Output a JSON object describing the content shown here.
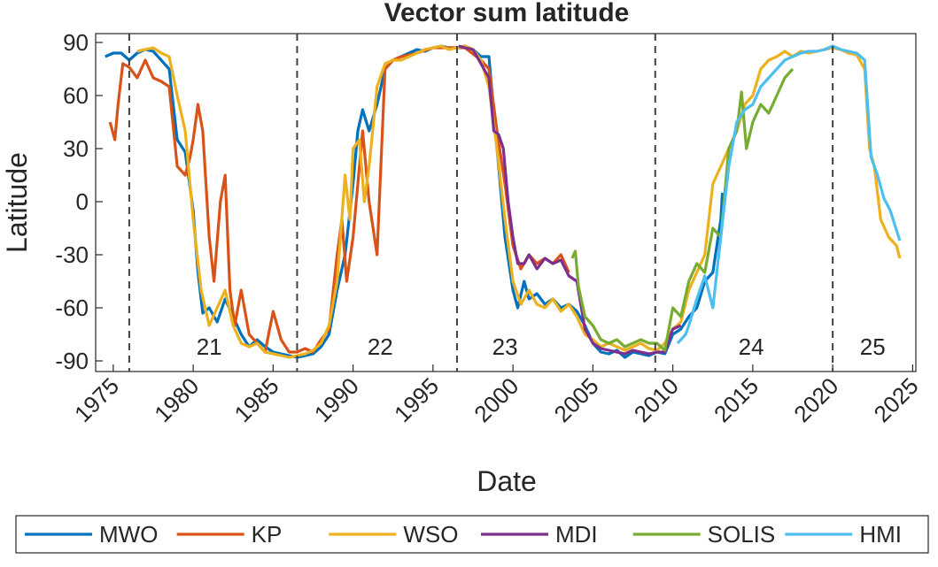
{
  "chart_data": {
    "type": "line",
    "title": "Vector sum latitude",
    "xlabel": "Date",
    "ylabel": "Latitude",
    "xlim": [
      1973.9,
      2025.2
    ],
    "ylim": [
      -96,
      95
    ],
    "xticks": [
      1975,
      1980,
      1985,
      1990,
      1995,
      2000,
      2005,
      2010,
      2015,
      2020,
      2025
    ],
    "yticks": [
      -90,
      -60,
      -30,
      0,
      30,
      60,
      90
    ],
    "legend": "bottom",
    "cycle_minima": [
      1976.0,
      1986.5,
      1996.5,
      2008.9,
      2020.0
    ],
    "cycle_labels": [
      {
        "text": "21",
        "x": 1981.0,
        "y": -82
      },
      {
        "text": "22",
        "x": 1991.7,
        "y": -82
      },
      {
        "text": "23",
        "x": 1999.5,
        "y": -82
      },
      {
        "text": "24",
        "x": 2014.9,
        "y": -82
      },
      {
        "text": "25",
        "x": 2022.5,
        "y": -82
      }
    ],
    "series": [
      {
        "name": "MWO",
        "color": "#0072BD",
        "x": [
          1974.5,
          1975,
          1975.5,
          1976,
          1976.5,
          1977,
          1977.5,
          1978,
          1978.5,
          1979,
          1979.5,
          1980,
          1980.3,
          1980.6,
          1981,
          1981.5,
          1982,
          1982.5,
          1983,
          1983.5,
          1984,
          1984.5,
          1985,
          1985.5,
          1986,
          1986.5,
          1987,
          1987.5,
          1988,
          1988.5,
          1989,
          1989.5,
          1990,
          1990.3,
          1990.6,
          1991,
          1991.5,
          1992,
          1992.5,
          1993,
          1993.5,
          1994,
          1994.5,
          1995,
          1995.5,
          1996,
          1996.5,
          1997,
          1997.5,
          1998,
          1998.5,
          1999,
          1999.5,
          2000,
          2000.3,
          2000.7,
          2001,
          2001.5,
          2002,
          2002.5,
          2003,
          2003.5,
          2004,
          2004.5,
          2005,
          2005.5,
          2006,
          2006.5,
          2007,
          2007.5,
          2008,
          2008.5,
          2009,
          2009.5,
          2010,
          2010.5,
          2011,
          2011.5,
          2012,
          2012.5,
          2013,
          2013.1
        ],
        "values": [
          82,
          84,
          84,
          80,
          84,
          86,
          85,
          80,
          75,
          35,
          28,
          -5,
          -40,
          -63,
          -60,
          -68,
          -55,
          -65,
          -75,
          -82,
          -78,
          -82,
          -85,
          -86,
          -87,
          -88,
          -87,
          -86,
          -82,
          -75,
          -50,
          -30,
          10,
          40,
          52,
          40,
          55,
          75,
          80,
          82,
          84,
          86,
          85,
          87,
          88,
          87,
          87,
          88,
          86,
          82,
          82,
          30,
          -20,
          -50,
          -60,
          -45,
          -55,
          -52,
          -58,
          -55,
          -60,
          -58,
          -62,
          -70,
          -80,
          -85,
          -86,
          -84,
          -88,
          -85,
          -86,
          -87,
          -85,
          -86,
          -75,
          -72,
          -65,
          -60,
          -45,
          -40,
          -10,
          5
        ]
      },
      {
        "name": "KP",
        "color": "#D95319",
        "x": [
          1974.8,
          1975.1,
          1975.3,
          1975.6,
          1976,
          1976.5,
          1977,
          1977.5,
          1978,
          1978.5,
          1979,
          1979.5,
          1979.8,
          1980,
          1980.3,
          1980.6,
          1981,
          1981.3,
          1981.7,
          1982,
          1982.3,
          1982.6,
          1983,
          1983.5,
          1984,
          1984.5,
          1985,
          1985.5,
          1986,
          1986.5,
          1987,
          1987.5,
          1988,
          1988.5,
          1989,
          1989.3,
          1989.6,
          1990,
          1990.3,
          1990.6,
          1991,
          1991.5,
          1992,
          1992.5,
          1993,
          1994,
          1995,
          1996,
          1997,
          1998,
          1998.5,
          1999,
          1999.5,
          2000,
          2000.5,
          2001,
          2001.5,
          2002,
          2002.5,
          2003,
          2003.5
        ],
        "values": [
          45,
          35,
          55,
          78,
          76,
          70,
          80,
          70,
          68,
          65,
          20,
          15,
          25,
          35,
          55,
          40,
          -20,
          -45,
          0,
          15,
          -50,
          -70,
          -50,
          -75,
          -80,
          -85,
          -62,
          -78,
          -85,
          -85,
          -83,
          -85,
          -78,
          -72,
          -30,
          -10,
          -45,
          -20,
          10,
          40,
          0,
          -30,
          75,
          80,
          82,
          84,
          87,
          87,
          87,
          80,
          75,
          40,
          10,
          -25,
          -38,
          -30,
          -35,
          -32,
          -35,
          -30,
          -40
        ]
      },
      {
        "name": "WSO",
        "color": "#EDB120",
        "x": [
          1976.5,
          1977,
          1977.5,
          1978,
          1978.5,
          1979,
          1979.5,
          1980,
          1980.5,
          1981,
          1981.5,
          1982,
          1982.5,
          1983,
          1983.5,
          1984,
          1984.5,
          1985,
          1985.5,
          1986,
          1986.5,
          1987,
          1987.5,
          1988,
          1988.5,
          1989,
          1989.5,
          1989.8,
          1990,
          1990.4,
          1990.7,
          1991,
          1991.5,
          1992,
          1992.5,
          1993,
          1993.5,
          1994,
          1994.5,
          1995,
          1995.5,
          1996,
          1996.5,
          1997,
          1997.5,
          1998,
          1998.5,
          1999,
          1999.5,
          2000,
          2000.5,
          2001,
          2001.5,
          2002,
          2002.5,
          2003,
          2003.5,
          2004,
          2004.5,
          2005,
          2005.5,
          2006,
          2006.5,
          2007,
          2007.5,
          2008,
          2008.5,
          2009,
          2009.5,
          2010,
          2010.5,
          2011,
          2011.5,
          2012,
          2012.5,
          2013,
          2013.5,
          2014,
          2014.5,
          2015,
          2015.5,
          2016,
          2016.5,
          2017,
          2017.5,
          2018,
          2018.5,
          2019,
          2019.5,
          2020,
          2020.5,
          2021,
          2021.5,
          2022,
          2022.3,
          2022.6,
          2023,
          2023.5,
          2024,
          2024.2
        ],
        "values": [
          85,
          86,
          87,
          84,
          82,
          60,
          40,
          -10,
          -50,
          -70,
          -60,
          -50,
          -70,
          -80,
          -82,
          -80,
          -85,
          -86,
          -87,
          -88,
          -87,
          -86,
          -84,
          -80,
          -70,
          -45,
          15,
          -10,
          30,
          35,
          0,
          20,
          65,
          78,
          80,
          80,
          82,
          84,
          86,
          87,
          88,
          86,
          87,
          88,
          86,
          80,
          65,
          30,
          -10,
          -45,
          -58,
          -50,
          -58,
          -60,
          -55,
          -62,
          -58,
          -65,
          -75,
          -78,
          -82,
          -80,
          -82,
          -84,
          -82,
          -80,
          -83,
          -84,
          -80,
          -72,
          -68,
          -50,
          -40,
          -30,
          10,
          20,
          30,
          40,
          55,
          60,
          75,
          80,
          82,
          85,
          82,
          85,
          84,
          85,
          86,
          87,
          86,
          84,
          83,
          75,
          30,
          20,
          -10,
          -20,
          -25,
          -32
        ]
      },
      {
        "name": "MDI",
        "color": "#7E2F8E",
        "x": [
          1996.6,
          1997,
          1997.5,
          1998,
          1998.5,
          1998.8,
          1999.1,
          1999.4,
          1999.7,
          2000,
          2000.3,
          2000.7,
          2001,
          2001.5,
          2002,
          2002.5,
          2003,
          2003.5,
          2004,
          2004.5,
          2005,
          2005.5,
          2006,
          2006.5,
          2007,
          2007.5,
          2008,
          2008.5,
          2009,
          2009.5,
          2010,
          2010.5
        ],
        "values": [
          88,
          87,
          86,
          78,
          70,
          40,
          38,
          30,
          0,
          -20,
          -35,
          -35,
          -30,
          -38,
          -32,
          -35,
          -33,
          -42,
          -45,
          -72,
          -80,
          -83,
          -84,
          -85,
          -86,
          -84,
          -85,
          -86,
          -85,
          -85,
          -72,
          -70
        ]
      },
      {
        "name": "SOLIS",
        "color": "#77AC30",
        "x": [
          2003.7,
          2003.9,
          2004.1,
          2004.5,
          2005,
          2005.5,
          2006,
          2006.5,
          2007,
          2007.5,
          2008,
          2008.5,
          2009,
          2009.5,
          2010,
          2010.5,
          2011,
          2011.5,
          2012,
          2012.5,
          2013,
          2013.5,
          2014,
          2014.3,
          2014.6,
          2015,
          2015.5,
          2016,
          2016.5,
          2017,
          2017.5
        ],
        "values": [
          -32,
          -28,
          -48,
          -65,
          -70,
          -78,
          -80,
          -78,
          -82,
          -80,
          -78,
          -80,
          -80,
          -84,
          -60,
          -65,
          -45,
          -35,
          -40,
          -15,
          -20,
          30,
          40,
          62,
          30,
          45,
          55,
          50,
          60,
          70,
          75
        ]
      },
      {
        "name": "HMI",
        "color": "#4DBEEE",
        "x": [
          2010.3,
          2010.8,
          2011,
          2011.5,
          2012,
          2012.5,
          2013,
          2013.5,
          2014,
          2014.5,
          2015,
          2015.5,
          2016,
          2016.5,
          2017,
          2017.5,
          2018,
          2018.5,
          2019,
          2019.5,
          2020,
          2020.5,
          2021,
          2021.5,
          2022,
          2022.4,
          2022.8,
          2023.2,
          2023.6,
          2024.2
        ],
        "values": [
          -80,
          -75,
          -70,
          -55,
          -42,
          -60,
          -20,
          20,
          45,
          52,
          55,
          65,
          70,
          75,
          80,
          82,
          84,
          85,
          85,
          86,
          88,
          86,
          85,
          84,
          80,
          25,
          15,
          2,
          -5,
          -22
        ]
      }
    ]
  }
}
